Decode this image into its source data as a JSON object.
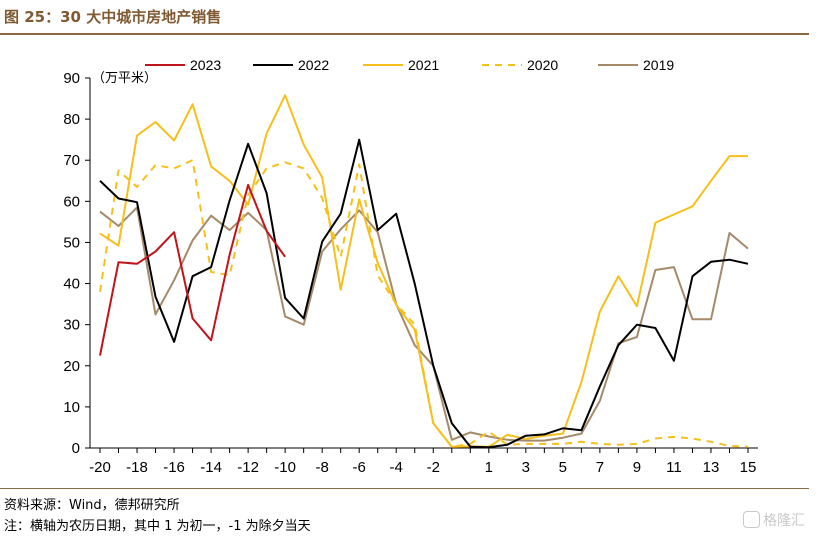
{
  "figure": {
    "title": "图 25：30 大中城市房地产销售",
    "source": "资料来源：Wind，德邦研究所",
    "note": "注：横轴为农历日期，其中 1 为初一，-1 为除夕当天",
    "watermark": "格隆汇"
  },
  "chart_data": {
    "type": "line",
    "unit_label": "（万平米）",
    "x": [
      -20,
      -19,
      -18,
      -17,
      -16,
      -15,
      -14,
      -13,
      -12,
      -11,
      -10,
      -9,
      -8,
      -7,
      -6,
      -5,
      -4,
      -3,
      -2,
      -1,
      0,
      1,
      2,
      3,
      4,
      5,
      6,
      7,
      8,
      9,
      10,
      11,
      12,
      13,
      14,
      15
    ],
    "x_ticks": [
      -20,
      -18,
      -16,
      -14,
      -12,
      -10,
      -8,
      -6,
      -4,
      -2,
      1,
      3,
      5,
      7,
      9,
      11,
      13,
      15
    ],
    "ylim": [
      0,
      90
    ],
    "y_ticks": [
      0,
      10,
      20,
      30,
      40,
      50,
      60,
      70,
      80,
      90
    ],
    "grid": false,
    "legend_position": "top",
    "series": [
      {
        "name": "2023",
        "color": "#c0141b",
        "dash": false,
        "values": [
          22.5,
          45.2,
          44.8,
          47.8,
          52.5,
          31.5,
          26.2,
          47.0,
          64.0,
          52.8,
          46.5,
          null,
          null,
          null,
          null,
          null,
          null,
          null,
          null,
          null,
          null,
          null,
          null,
          null,
          null,
          null,
          null,
          null,
          null,
          null,
          null,
          null,
          null,
          null,
          null,
          null
        ]
      },
      {
        "name": "2022",
        "color": "#000000",
        "dash": false,
        "values": [
          65.0,
          60.7,
          59.8,
          36.8,
          25.8,
          41.8,
          44.0,
          60.2,
          74.0,
          62.0,
          36.5,
          31.5,
          50.2,
          57.0,
          75.0,
          53.0,
          57.0,
          40.0,
          20.0,
          6.0,
          0.3,
          0.2,
          0.8,
          3.0,
          3.3,
          4.8,
          4.3,
          15.0,
          25.0,
          30.0,
          29.2,
          21.2,
          41.8,
          45.3,
          45.8,
          44.8
        ]
      },
      {
        "name": "2021",
        "color": "#f5c01b",
        "dash": false,
        "values": [
          52.2,
          49.2,
          76.0,
          79.3,
          74.8,
          83.6,
          68.5,
          65.0,
          59.2,
          76.5,
          85.8,
          73.8,
          65.8,
          38.5,
          60.5,
          45.0,
          34.8,
          28.8,
          6.0,
          0.3,
          0.4,
          0.3,
          3.2,
          2.2,
          3.0,
          3.5,
          16.0,
          33.2,
          41.8,
          34.5,
          54.8,
          56.8,
          58.8,
          65.0,
          71.0,
          71.0
        ]
      },
      {
        "name": "2020",
        "color": "#f5c01b",
        "dash": true,
        "values": [
          38.0,
          67.5,
          63.5,
          68.8,
          68.0,
          70.0,
          42.8,
          42.0,
          61.5,
          68.0,
          69.5,
          68.0,
          60.8,
          46.5,
          69.0,
          42.0,
          35.0,
          30.0,
          6.0,
          0.3,
          1.0,
          4.0,
          0.8,
          1.0,
          1.0,
          1.0,
          1.5,
          1.0,
          0.8,
          1.0,
          2.3,
          2.7,
          2.3,
          1.5,
          0.5,
          0.3
        ]
      },
      {
        "name": "2019",
        "color": "#a58a6a",
        "dash": false,
        "values": [
          57.5,
          54.0,
          58.5,
          32.5,
          40.8,
          50.5,
          56.5,
          53.0,
          57.2,
          53.0,
          32.0,
          30.0,
          47.8,
          53.2,
          57.8,
          52.5,
          35.0,
          25.0,
          20.0,
          2.0,
          3.8,
          2.8,
          2.0,
          1.8,
          1.8,
          2.5,
          3.5,
          11.5,
          25.5,
          27.0,
          43.3,
          44.0,
          31.3,
          31.3,
          52.3,
          48.5
        ]
      }
    ]
  }
}
